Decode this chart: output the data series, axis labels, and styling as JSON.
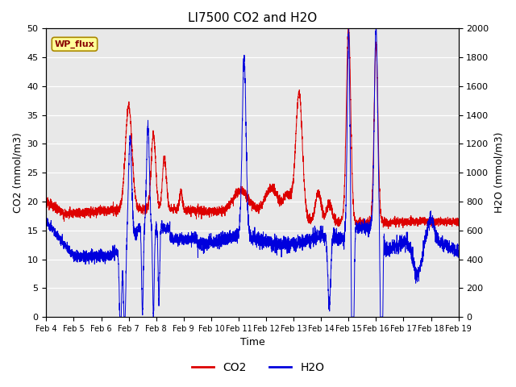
{
  "title": "LI7500 CO2 and H2O",
  "xlabel": "Time",
  "ylabel_left": "CO2 (mmol/m3)",
  "ylabel_right": "H2O (mmol/m3)",
  "ylim_co2": [
    0,
    50
  ],
  "ylim_h2o": [
    0,
    2000
  ],
  "yticks_co2": [
    0,
    5,
    10,
    15,
    20,
    25,
    30,
    35,
    40,
    45,
    50
  ],
  "yticks_h2o": [
    0,
    200,
    400,
    600,
    800,
    1000,
    1200,
    1400,
    1600,
    1800,
    2000
  ],
  "xtick_labels": [
    "Feb 4",
    "Feb 5",
    "Feb 6",
    "Feb 7",
    "Feb 8",
    "Feb 9",
    "Feb 10",
    "Feb 11",
    "Feb 12",
    "Feb 13",
    "Feb 14",
    "Feb 15",
    "Feb 16",
    "Feb 17",
    "Feb 18",
    "Feb 19"
  ],
  "co2_color": "#dd0000",
  "h2o_color": "#0000dd",
  "legend_label_co2": "CO2",
  "legend_label_h2o": "H2O",
  "annotation_text": "WP_flux",
  "background_color": "#ffffff",
  "plot_bg_color": "#e8e8e8",
  "grid_color": "#ffffff",
  "title_fontsize": 11
}
